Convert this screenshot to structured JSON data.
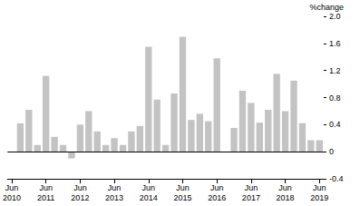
{
  "chart_data": {
    "type": "bar",
    "color": "#c3c3c3",
    "grid": false,
    "y_label": "%change",
    "categories": [
      "Jun\n2010",
      null,
      null,
      null,
      "Jun\n2011",
      null,
      null,
      null,
      "Jun\n2012",
      null,
      null,
      null,
      "Jun\n2013",
      null,
      null,
      null,
      "Jun\n2014",
      null,
      null,
      null,
      "Jun\n2015",
      null,
      null,
      null,
      "Jun\n2016",
      null,
      null,
      null,
      "Jun\n2017",
      null,
      null,
      null,
      "Jun\n2018",
      null,
      null,
      null,
      "Jun\n2019"
    ],
    "values": [
      null,
      0.42,
      0.62,
      0.1,
      1.12,
      0.22,
      0.1,
      -0.1,
      0.4,
      0.6,
      0.3,
      0.1,
      0.2,
      0.1,
      0.3,
      0.38,
      1.55,
      0.77,
      0.1,
      0.86,
      1.7,
      0.47,
      0.56,
      0.45,
      1.38,
      null,
      0.35,
      0.9,
      0.72,
      0.43,
      0.62,
      1.15,
      0.6,
      1.05,
      0.42,
      0.17,
      0.17
    ],
    "ylim": [
      -0.4,
      2.0
    ],
    "yticks": [
      -0.4,
      0,
      0.4,
      0.8,
      1.2,
      1.6,
      {
        "value": 2,
        "label": "2.0"
      }
    ]
  }
}
